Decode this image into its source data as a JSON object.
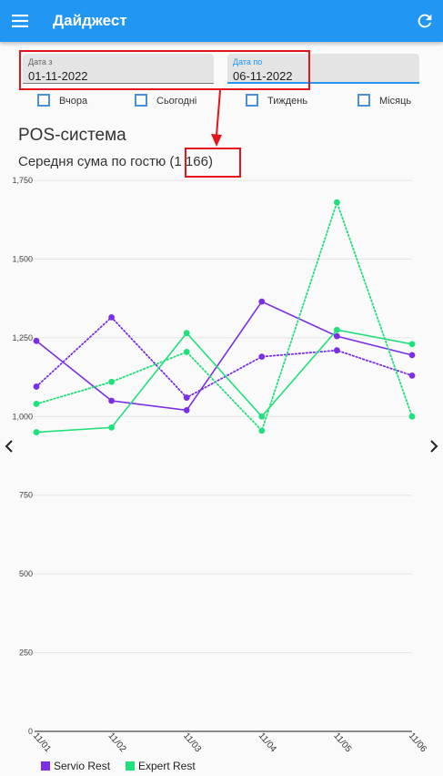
{
  "app": {
    "title": "Дайджест",
    "colors": {
      "primary": "#2196f3",
      "highlight": "#e5141b"
    }
  },
  "filters": {
    "date_from": {
      "label": "Дата з",
      "value": "01-11-2022"
    },
    "date_to": {
      "label": "Дата по",
      "value": "06-11-2022"
    },
    "quick_ranges": [
      {
        "label": "Вчора",
        "checked": false
      },
      {
        "label": "Сьогодні",
        "checked": false
      },
      {
        "label": "Тиждень",
        "checked": false
      },
      {
        "label": "Місяць",
        "checked": false
      }
    ]
  },
  "section": {
    "title": "POS-система",
    "metric_label": "Середня сума по гостю (",
    "metric_value": "1 166",
    "metric_suffix": ")"
  },
  "chart_data": {
    "type": "line",
    "categories": [
      "11/01",
      "11/02",
      "11/03",
      "11/04",
      "11/05",
      "11/06"
    ],
    "ylim": [
      0,
      1750
    ],
    "yticks": [
      "0",
      "250",
      "500",
      "750",
      "1,000",
      "1,250",
      "1,500",
      "1,750"
    ],
    "grid": true,
    "legend_position": "bottom-left",
    "series": [
      {
        "name": "Servio Rest",
        "color": "#7b2ee6",
        "style": "solid",
        "values": [
          1240,
          1050,
          1020,
          1365,
          1255,
          1195
        ]
      },
      {
        "name": "Servio Rest",
        "color": "#7b2ee6",
        "style": "dotted",
        "values": [
          1095,
          1315,
          1060,
          1190,
          1210,
          1130
        ]
      },
      {
        "name": "Expert Rest",
        "color": "#1fe07a",
        "style": "solid",
        "values": [
          950,
          965,
          1265,
          1000,
          1275,
          1230
        ]
      },
      {
        "name": "Expert Rest",
        "color": "#1fe07a",
        "style": "dotted",
        "values": [
          1040,
          1110,
          1205,
          955,
          1680,
          1000
        ]
      }
    ],
    "legend": [
      {
        "name": "Servio Rest",
        "color": "#7b2ee6"
      },
      {
        "name": "Expert Rest",
        "color": "#1fe07a"
      }
    ]
  }
}
